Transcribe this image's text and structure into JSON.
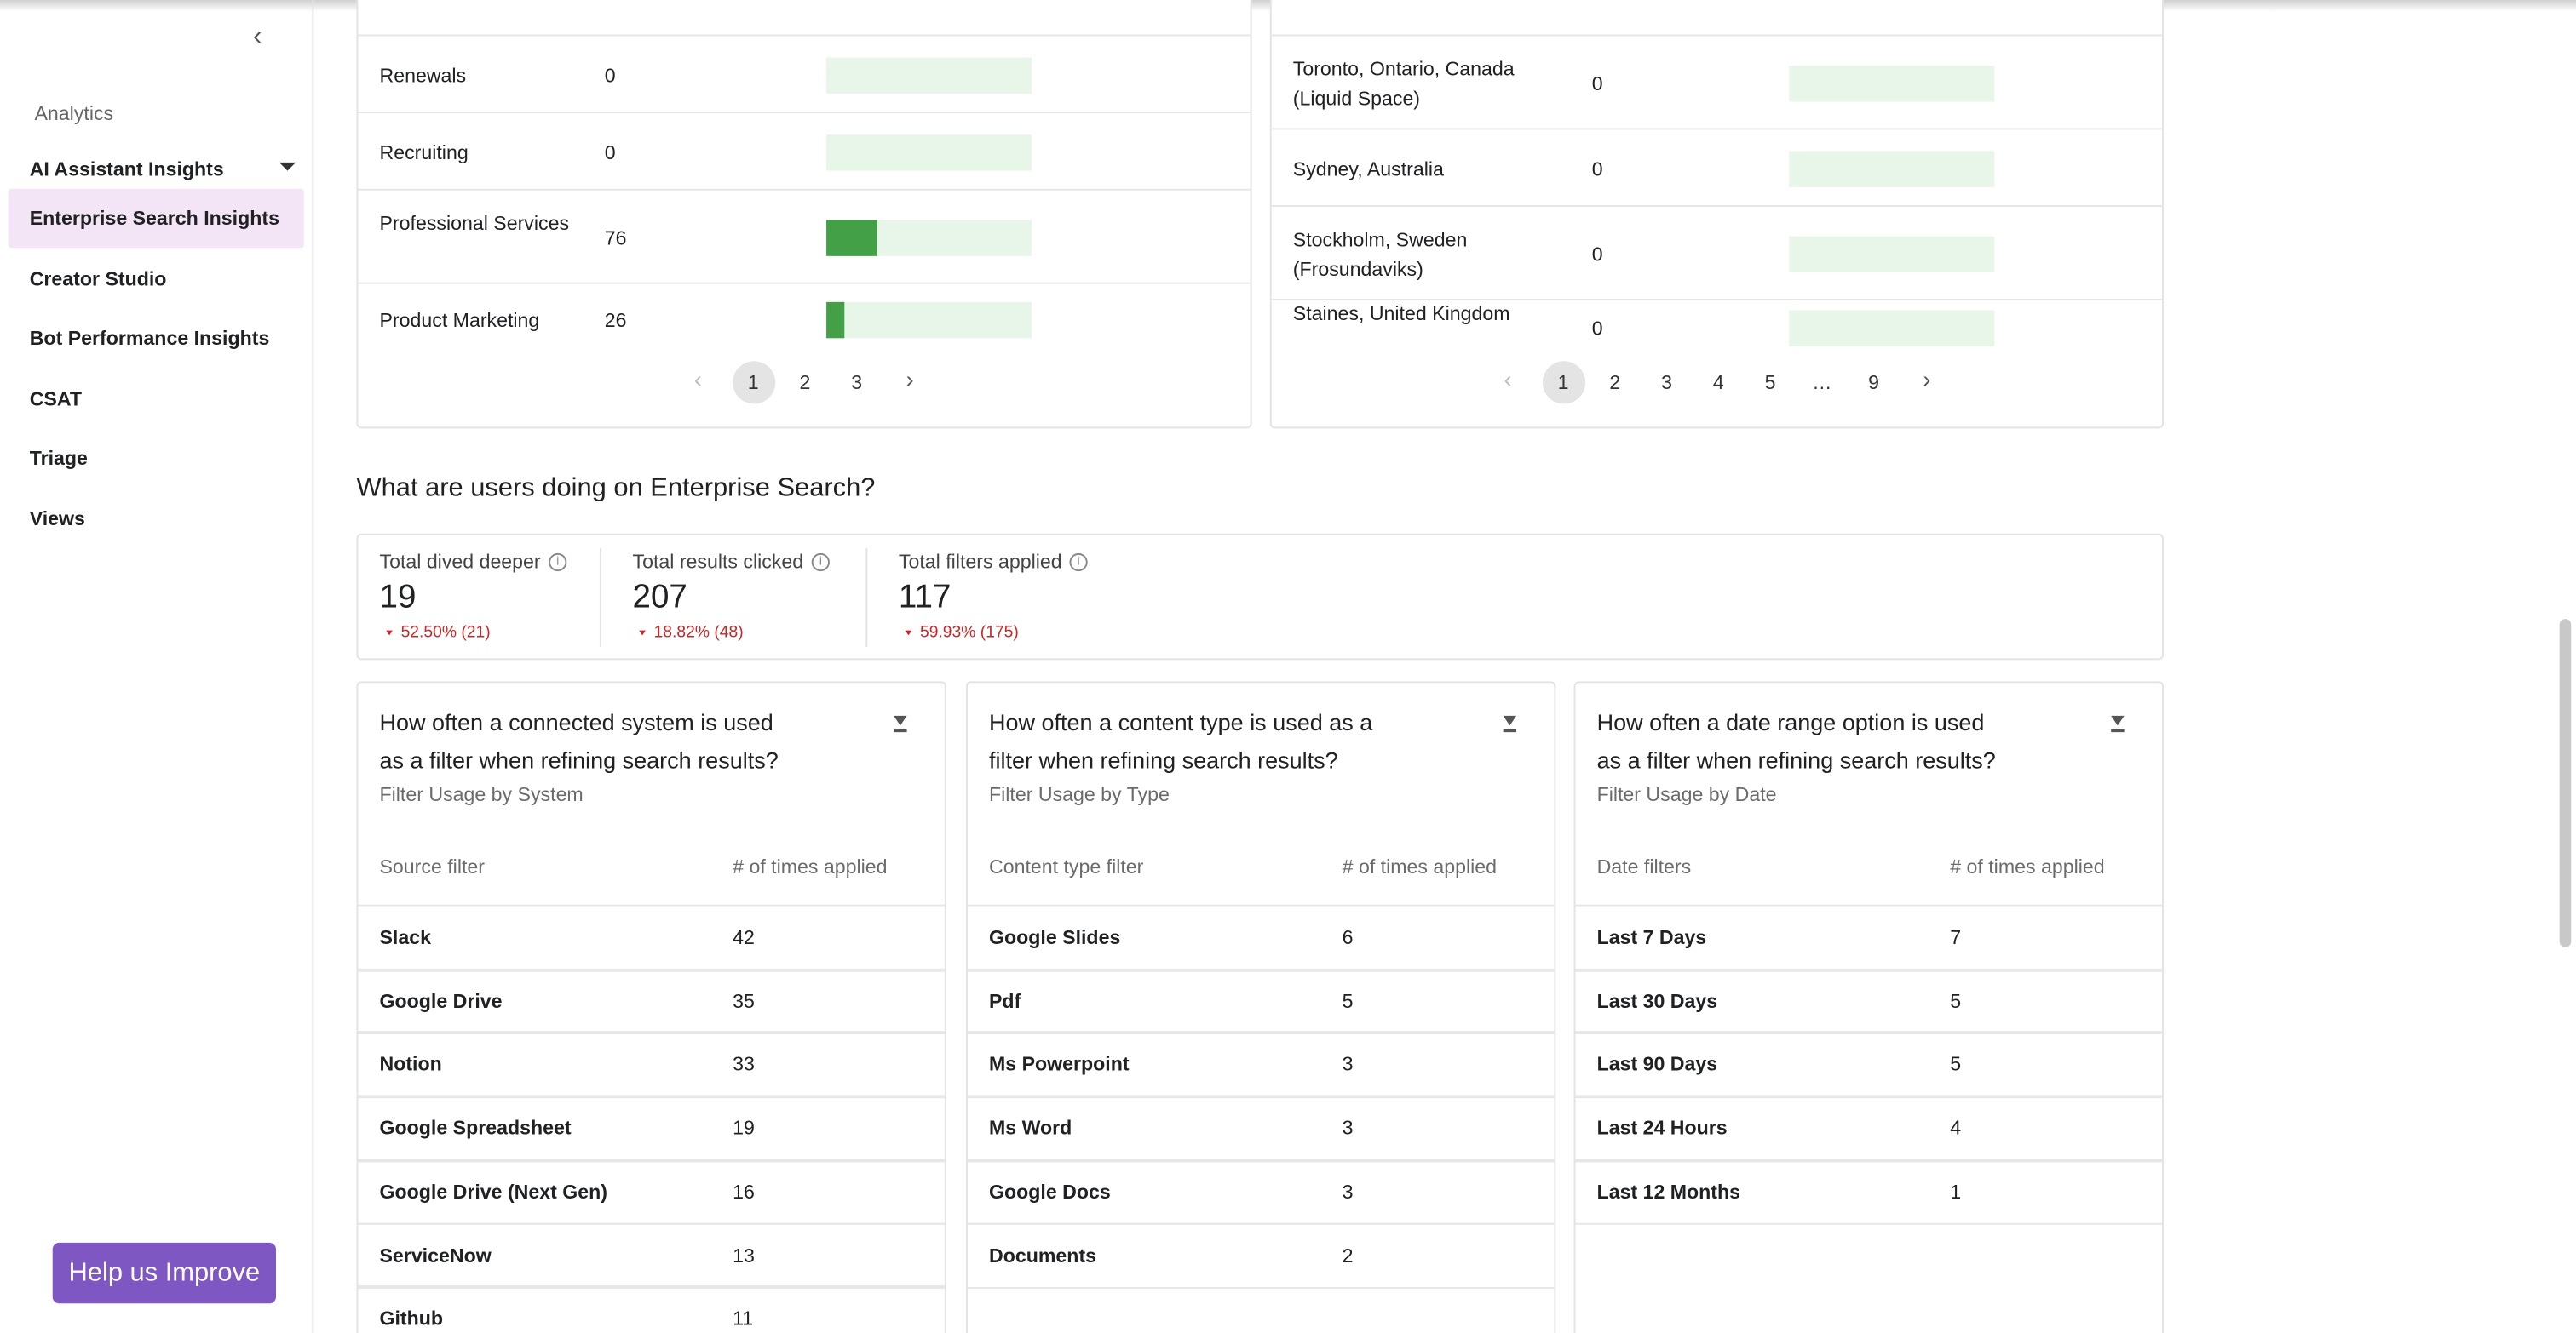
{
  "sidebar": {
    "section": "Analytics",
    "items": [
      "AI Assistant Insights",
      "Enterprise Search Insights",
      "Creator Studio",
      "Bot Performance Insights",
      "CSAT",
      "Triage",
      "Views"
    ],
    "active": 1
  },
  "help_button": "Help us Improve",
  "top_left": {
    "rows": [
      {
        "name": "Renewals",
        "value": 0
      },
      {
        "name": "Recruiting",
        "value": 0
      },
      {
        "name": "Professional Services",
        "value": 76
      },
      {
        "name": "Product Marketing",
        "value": 26
      }
    ],
    "pages": [
      "1",
      "2",
      "3"
    ]
  },
  "top_right": {
    "rows": [
      {
        "name": "Toronto, Ontario, Canada (Liquid Space)",
        "value": 0
      },
      {
        "name": "Sydney, Australia",
        "value": 0
      },
      {
        "name": "Stockholm, Sweden (Frosundaviks)",
        "value": 0
      },
      {
        "name": "Staines, United Kingdom",
        "value": 0
      }
    ],
    "pages": [
      "1",
      "2",
      "3",
      "4",
      "5",
      "…",
      "9"
    ]
  },
  "section_title": "What are users doing on Enterprise Search?",
  "metrics": [
    {
      "label": "Total dived deeper",
      "value": "19",
      "change": "52.50% (21)"
    },
    {
      "label": "Total results clicked",
      "value": "207",
      "change": "18.82% (48)"
    },
    {
      "label": "Total filters applied",
      "value": "117",
      "change": "59.93% (175)"
    }
  ],
  "cards": [
    {
      "title": "How often a connected system is used as a filter when refining search results?",
      "subtitle": "Filter Usage by System",
      "columns": [
        "Source filter",
        "# of times applied"
      ],
      "rows": [
        [
          "Slack",
          "42"
        ],
        [
          "Google Drive",
          "35"
        ],
        [
          "Notion",
          "33"
        ],
        [
          "Google Spreadsheet",
          "19"
        ],
        [
          "Google Drive (Next Gen)",
          "16"
        ],
        [
          "ServiceNow",
          "13"
        ],
        [
          "Github",
          "11"
        ]
      ]
    },
    {
      "title": "How often a content type is used as a filter when refining search results?",
      "subtitle": "Filter Usage by Type",
      "columns": [
        "Content type filter",
        "# of times applied"
      ],
      "rows": [
        [
          "Google Slides",
          "6"
        ],
        [
          "Pdf",
          "5"
        ],
        [
          "Ms Powerpoint",
          "3"
        ],
        [
          "Ms Word",
          "3"
        ],
        [
          "Google Docs",
          "3"
        ],
        [
          "Documents",
          "2"
        ]
      ]
    },
    {
      "title": "How often a date range option is used as a filter when refining search results?",
      "subtitle": "Filter Usage by Date",
      "columns": [
        "Date filters",
        "# of times applied"
      ],
      "rows": [
        [
          "Last 7 Days",
          "7"
        ],
        [
          "Last 30 Days",
          "5"
        ],
        [
          "Last 90 Days",
          "5"
        ],
        [
          "Last 24 Hours",
          "4"
        ],
        [
          "Last 12 Months",
          "1"
        ]
      ]
    }
  ]
}
